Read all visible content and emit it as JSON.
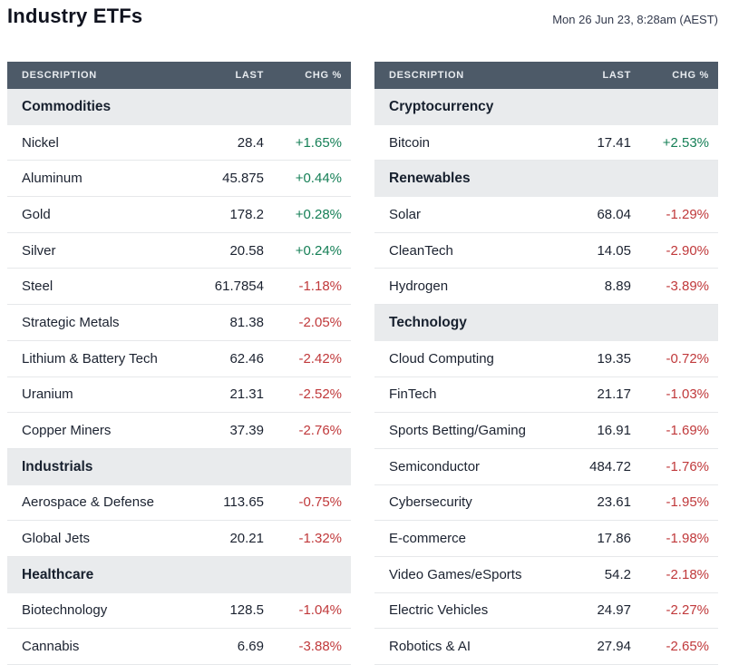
{
  "header": {
    "title": "Industry ETFs",
    "timestamp": "Mon 26 Jun 23, 8:28am (AEST)"
  },
  "columns": [
    "DESCRIPTION",
    "LAST",
    "CHG %"
  ],
  "colors": {
    "positive": "#157f56",
    "negative": "#c0393b",
    "header_bar": "#4d5a68",
    "section_bg": "#e9ebed"
  },
  "tables": [
    {
      "sections": [
        {
          "name": "Commodities",
          "rows": [
            {
              "description": "Nickel",
              "last": "28.4",
              "chg": "+1.65%"
            },
            {
              "description": "Aluminum",
              "last": "45.875",
              "chg": "+0.44%"
            },
            {
              "description": "Gold",
              "last": "178.2",
              "chg": "+0.28%"
            },
            {
              "description": "Silver",
              "last": "20.58",
              "chg": "+0.24%"
            },
            {
              "description": "Steel",
              "last": "61.7854",
              "chg": "-1.18%"
            },
            {
              "description": "Strategic Metals",
              "last": "81.38",
              "chg": "-2.05%"
            },
            {
              "description": "Lithium & Battery Tech",
              "last": "62.46",
              "chg": "-2.42%"
            },
            {
              "description": "Uranium",
              "last": "21.31",
              "chg": "-2.52%"
            },
            {
              "description": "Copper Miners",
              "last": "37.39",
              "chg": "-2.76%"
            }
          ]
        },
        {
          "name": "Industrials",
          "rows": [
            {
              "description": "Aerospace & Defense",
              "last": "113.65",
              "chg": "-0.75%"
            },
            {
              "description": "Global Jets",
              "last": "20.21",
              "chg": "-1.32%"
            }
          ]
        },
        {
          "name": "Healthcare",
          "rows": [
            {
              "description": "Biotechnology",
              "last": "128.5",
              "chg": "-1.04%"
            },
            {
              "description": "Cannabis",
              "last": "6.69",
              "chg": "-3.88%"
            }
          ]
        }
      ]
    },
    {
      "sections": [
        {
          "name": "Cryptocurrency",
          "rows": [
            {
              "description": "Bitcoin",
              "last": "17.41",
              "chg": "+2.53%"
            }
          ]
        },
        {
          "name": "Renewables",
          "rows": [
            {
              "description": "Solar",
              "last": "68.04",
              "chg": "-1.29%"
            },
            {
              "description": "CleanTech",
              "last": "14.05",
              "chg": "-2.90%"
            },
            {
              "description": "Hydrogen",
              "last": "8.89",
              "chg": "-3.89%"
            }
          ]
        },
        {
          "name": "Technology",
          "rows": [
            {
              "description": "Cloud Computing",
              "last": "19.35",
              "chg": "-0.72%"
            },
            {
              "description": "FinTech",
              "last": "21.17",
              "chg": "-1.03%"
            },
            {
              "description": "Sports Betting/Gaming",
              "last": "16.91",
              "chg": "-1.69%"
            },
            {
              "description": "Semiconductor",
              "last": "484.72",
              "chg": "-1.76%"
            },
            {
              "description": "Cybersecurity",
              "last": "23.61",
              "chg": "-1.95%"
            },
            {
              "description": "E-commerce",
              "last": "17.86",
              "chg": "-1.98%"
            },
            {
              "description": "Video Games/eSports",
              "last": "54.2",
              "chg": "-2.18%"
            },
            {
              "description": "Electric Vehicles",
              "last": "24.97",
              "chg": "-2.27%"
            },
            {
              "description": "Robotics & AI",
              "last": "27.94",
              "chg": "-2.65%"
            }
          ]
        }
      ]
    }
  ]
}
